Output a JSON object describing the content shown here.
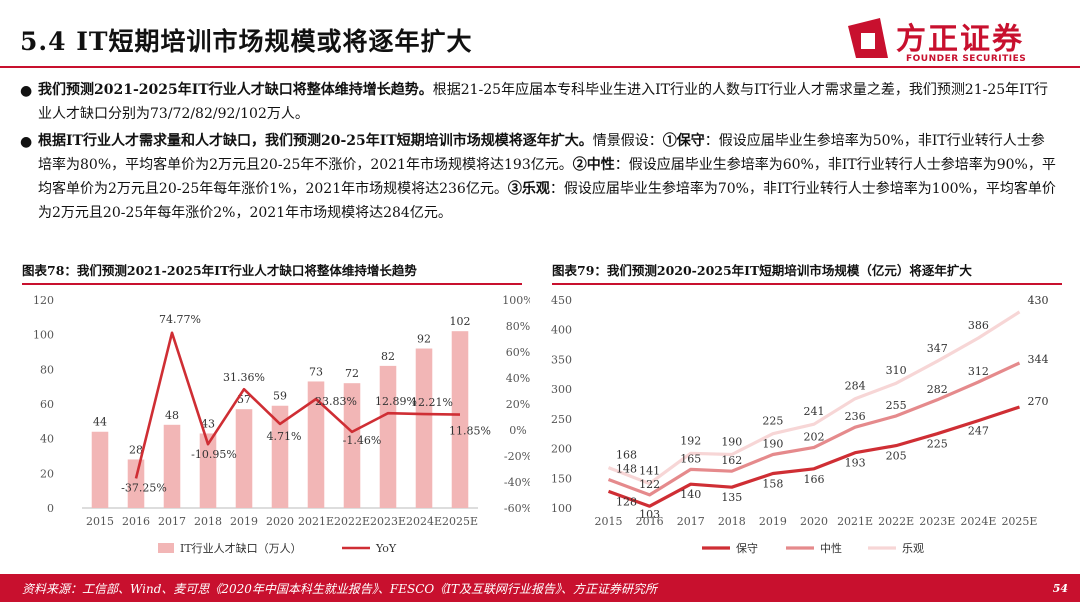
{
  "header": {
    "title": "5.4 IT短期培训市场规模或将逐年扩大",
    "logo_cn": "方正证券",
    "logo_en": "FOUNDER SECURITIES",
    "brand_color": "#c8102e"
  },
  "bullets": [
    {
      "bold": "我们预测2021-2025年IT行业人才缺口将整体维持增长趋势。",
      "text": "根据21-25年应届本专科毕业生进入IT行业的人数与IT行业人才需求量之差，我们预测21-25年IT行业人才缺口分别为73/72/82/92/102万人。"
    },
    {
      "bold": "根据IT行业人才需求量和人才缺口，我们预测20-25年IT短期培训市场规模将逐年扩大。",
      "text_a": "情景假设：",
      "s1_label": "①保守",
      "s1_text": "：假设应届毕业生参培率为50%，非IT行业转行人士参培率为80%，平均客单价为2万元且20-25年不涨价，2021年市场规模将达193亿元。",
      "s2_label": "②中性",
      "s2_text": "：假设应届毕业生参培率为60%，非IT行业转行人士参培率为90%，平均客单价为2万元且20-25年每年涨价1%，2021年市场规模将达236亿元。",
      "s3_label": "③乐观",
      "s3_text": "：假设应届毕业生参培率为70%，非IT行业转行人士参培率为100%，平均客单价为2万元且20-25年每年涨价2%，2021年市场规模将达284亿元。"
    }
  ],
  "figures": {
    "left_title": "图表78：我们预测2021-2025年IT行业人才缺口将整体维持增长趋势",
    "right_title": "图表79：我们预测2020-2025年IT短期培训市场规模（亿元）将逐年扩大"
  },
  "footer": {
    "source": "资料来源：工信部、Wind、麦可思《2020年中国本科生就业报告》、FESCO《IT及互联网行业报告》、方正证券研究所",
    "page": "54"
  },
  "chart_data": [
    {
      "type": "bar",
      "categories": [
        "2015",
        "2016",
        "2017",
        "2018",
        "2019",
        "2020",
        "2021E",
        "2022E",
        "2023E",
        "2024E",
        "2025E"
      ],
      "series": [
        {
          "name": "IT行业人才缺口（万人）",
          "type": "bar",
          "axis": "left",
          "color": "#f2b6b6",
          "values": [
            44,
            28,
            48,
            43,
            57,
            59,
            73,
            72,
            82,
            92,
            102
          ]
        },
        {
          "name": "YoY",
          "type": "line",
          "axis": "right",
          "color": "#cf2e34",
          "values": [
            null,
            -37.25,
            74.77,
            -10.95,
            31.36,
            4.71,
            23.83,
            -1.46,
            12.89,
            12.21,
            11.85
          ],
          "labels": [
            null,
            "-37.25%",
            "74.77%",
            "-10.95%",
            "31.36%",
            "4.71%",
            "23.83%",
            "-1.46%",
            "12.89%",
            "12.21%",
            "11.85%"
          ]
        }
      ],
      "yticks_left": [
        "0",
        "20",
        "40",
        "60",
        "80",
        "100",
        "120"
      ],
      "yticks_right": [
        "-60%",
        "-40%",
        "-20%",
        "0%",
        "20%",
        "40%",
        "60%",
        "80%",
        "100%"
      ],
      "ylim_left": [
        0,
        120
      ],
      "ylim_right": [
        -60,
        100
      ],
      "legend_position": "bottom"
    },
    {
      "type": "line",
      "categories": [
        "2015",
        "2016",
        "2017",
        "2018",
        "2019",
        "2020",
        "2021E",
        "2022E",
        "2023E",
        "2024E",
        "2025E"
      ],
      "series": [
        {
          "name": "保守",
          "color": "#cf2e34",
          "values": [
            128,
            103,
            140,
            135,
            158,
            166,
            193,
            205,
            225,
            247,
            270
          ],
          "labels": [
            "128",
            "103",
            "140",
            "135",
            "158",
            "166",
            "193",
            "205",
            "225",
            "247",
            "270"
          ]
        },
        {
          "name": "中性",
          "color": "#e58a8c",
          "values": [
            148,
            122,
            165,
            162,
            190,
            202,
            236,
            255,
            282,
            312,
            344
          ],
          "labels": [
            "148",
            "122",
            "165",
            "162",
            "190",
            "202",
            "236",
            "255",
            "282",
            "312",
            "344"
          ]
        },
        {
          "name": "乐观",
          "color": "#f7d6d6",
          "values": [
            168,
            141,
            192,
            190,
            225,
            241,
            284,
            310,
            347,
            386,
            430
          ],
          "labels": [
            "168",
            "141",
            "192",
            "190",
            "225",
            "241",
            "284",
            "310",
            "347",
            "386",
            "430"
          ]
        }
      ],
      "yticks": [
        "100",
        "150",
        "200",
        "250",
        "300",
        "350",
        "400",
        "450"
      ],
      "ylim": [
        100,
        450
      ],
      "legend_position": "bottom"
    }
  ]
}
